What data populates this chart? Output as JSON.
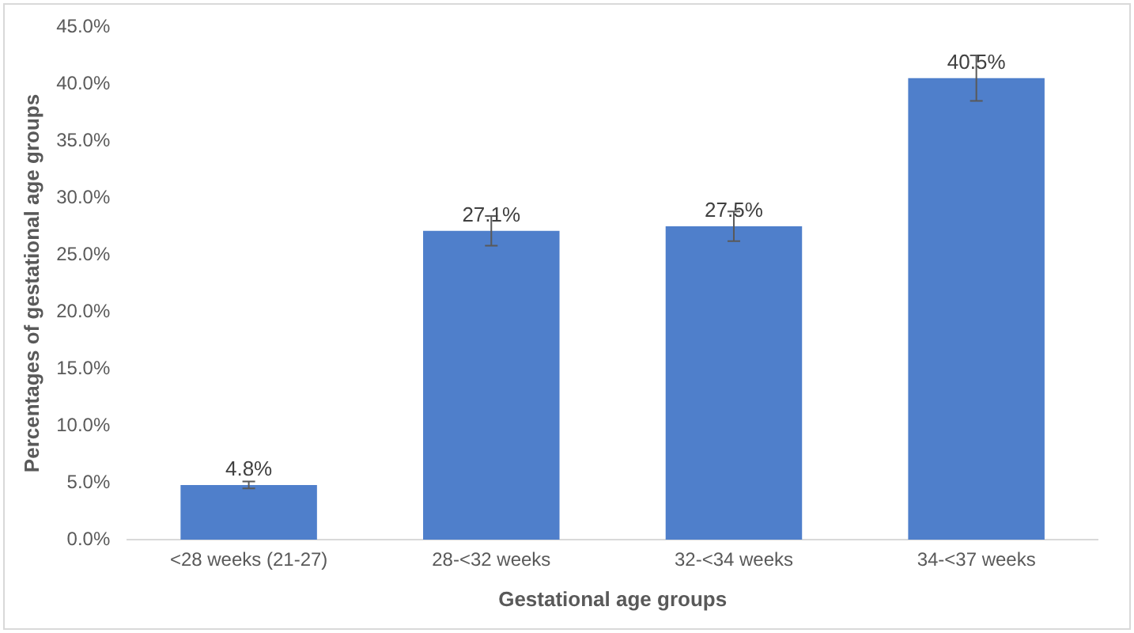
{
  "chart_data": {
    "type": "bar",
    "xlabel": "Gestational age groups",
    "ylabel": "Percentages of gestational age groups",
    "categories": [
      "<28 weeks (21-27)",
      "28-<32 weeks",
      "32-<34 weeks",
      "34-<37 weeks"
    ],
    "values": [
      4.8,
      27.1,
      27.5,
      40.5
    ],
    "errors": [
      0.3,
      1.3,
      1.3,
      2.0
    ],
    "color": "#4f7fcb",
    "ylim": [
      0,
      45
    ],
    "yticks": [
      {
        "value": 0,
        "label": "0.0%"
      },
      {
        "value": 5,
        "label": "5.0%"
      },
      {
        "value": 10,
        "label": "10.0%"
      },
      {
        "value": 15,
        "label": "15.0%"
      },
      {
        "value": 20,
        "label": "20.0%"
      },
      {
        "value": 25,
        "label": "25.0%"
      },
      {
        "value": 30,
        "label": "30.0%"
      },
      {
        "value": 35,
        "label": "35.0%"
      },
      {
        "value": 40,
        "label": "40.0%"
      },
      {
        "value": 45,
        "label": "45.0%"
      }
    ],
    "value_labels": [
      "4.8%",
      "27.1%",
      "27.5%",
      "40.5%"
    ],
    "grid": false,
    "legend": false
  }
}
